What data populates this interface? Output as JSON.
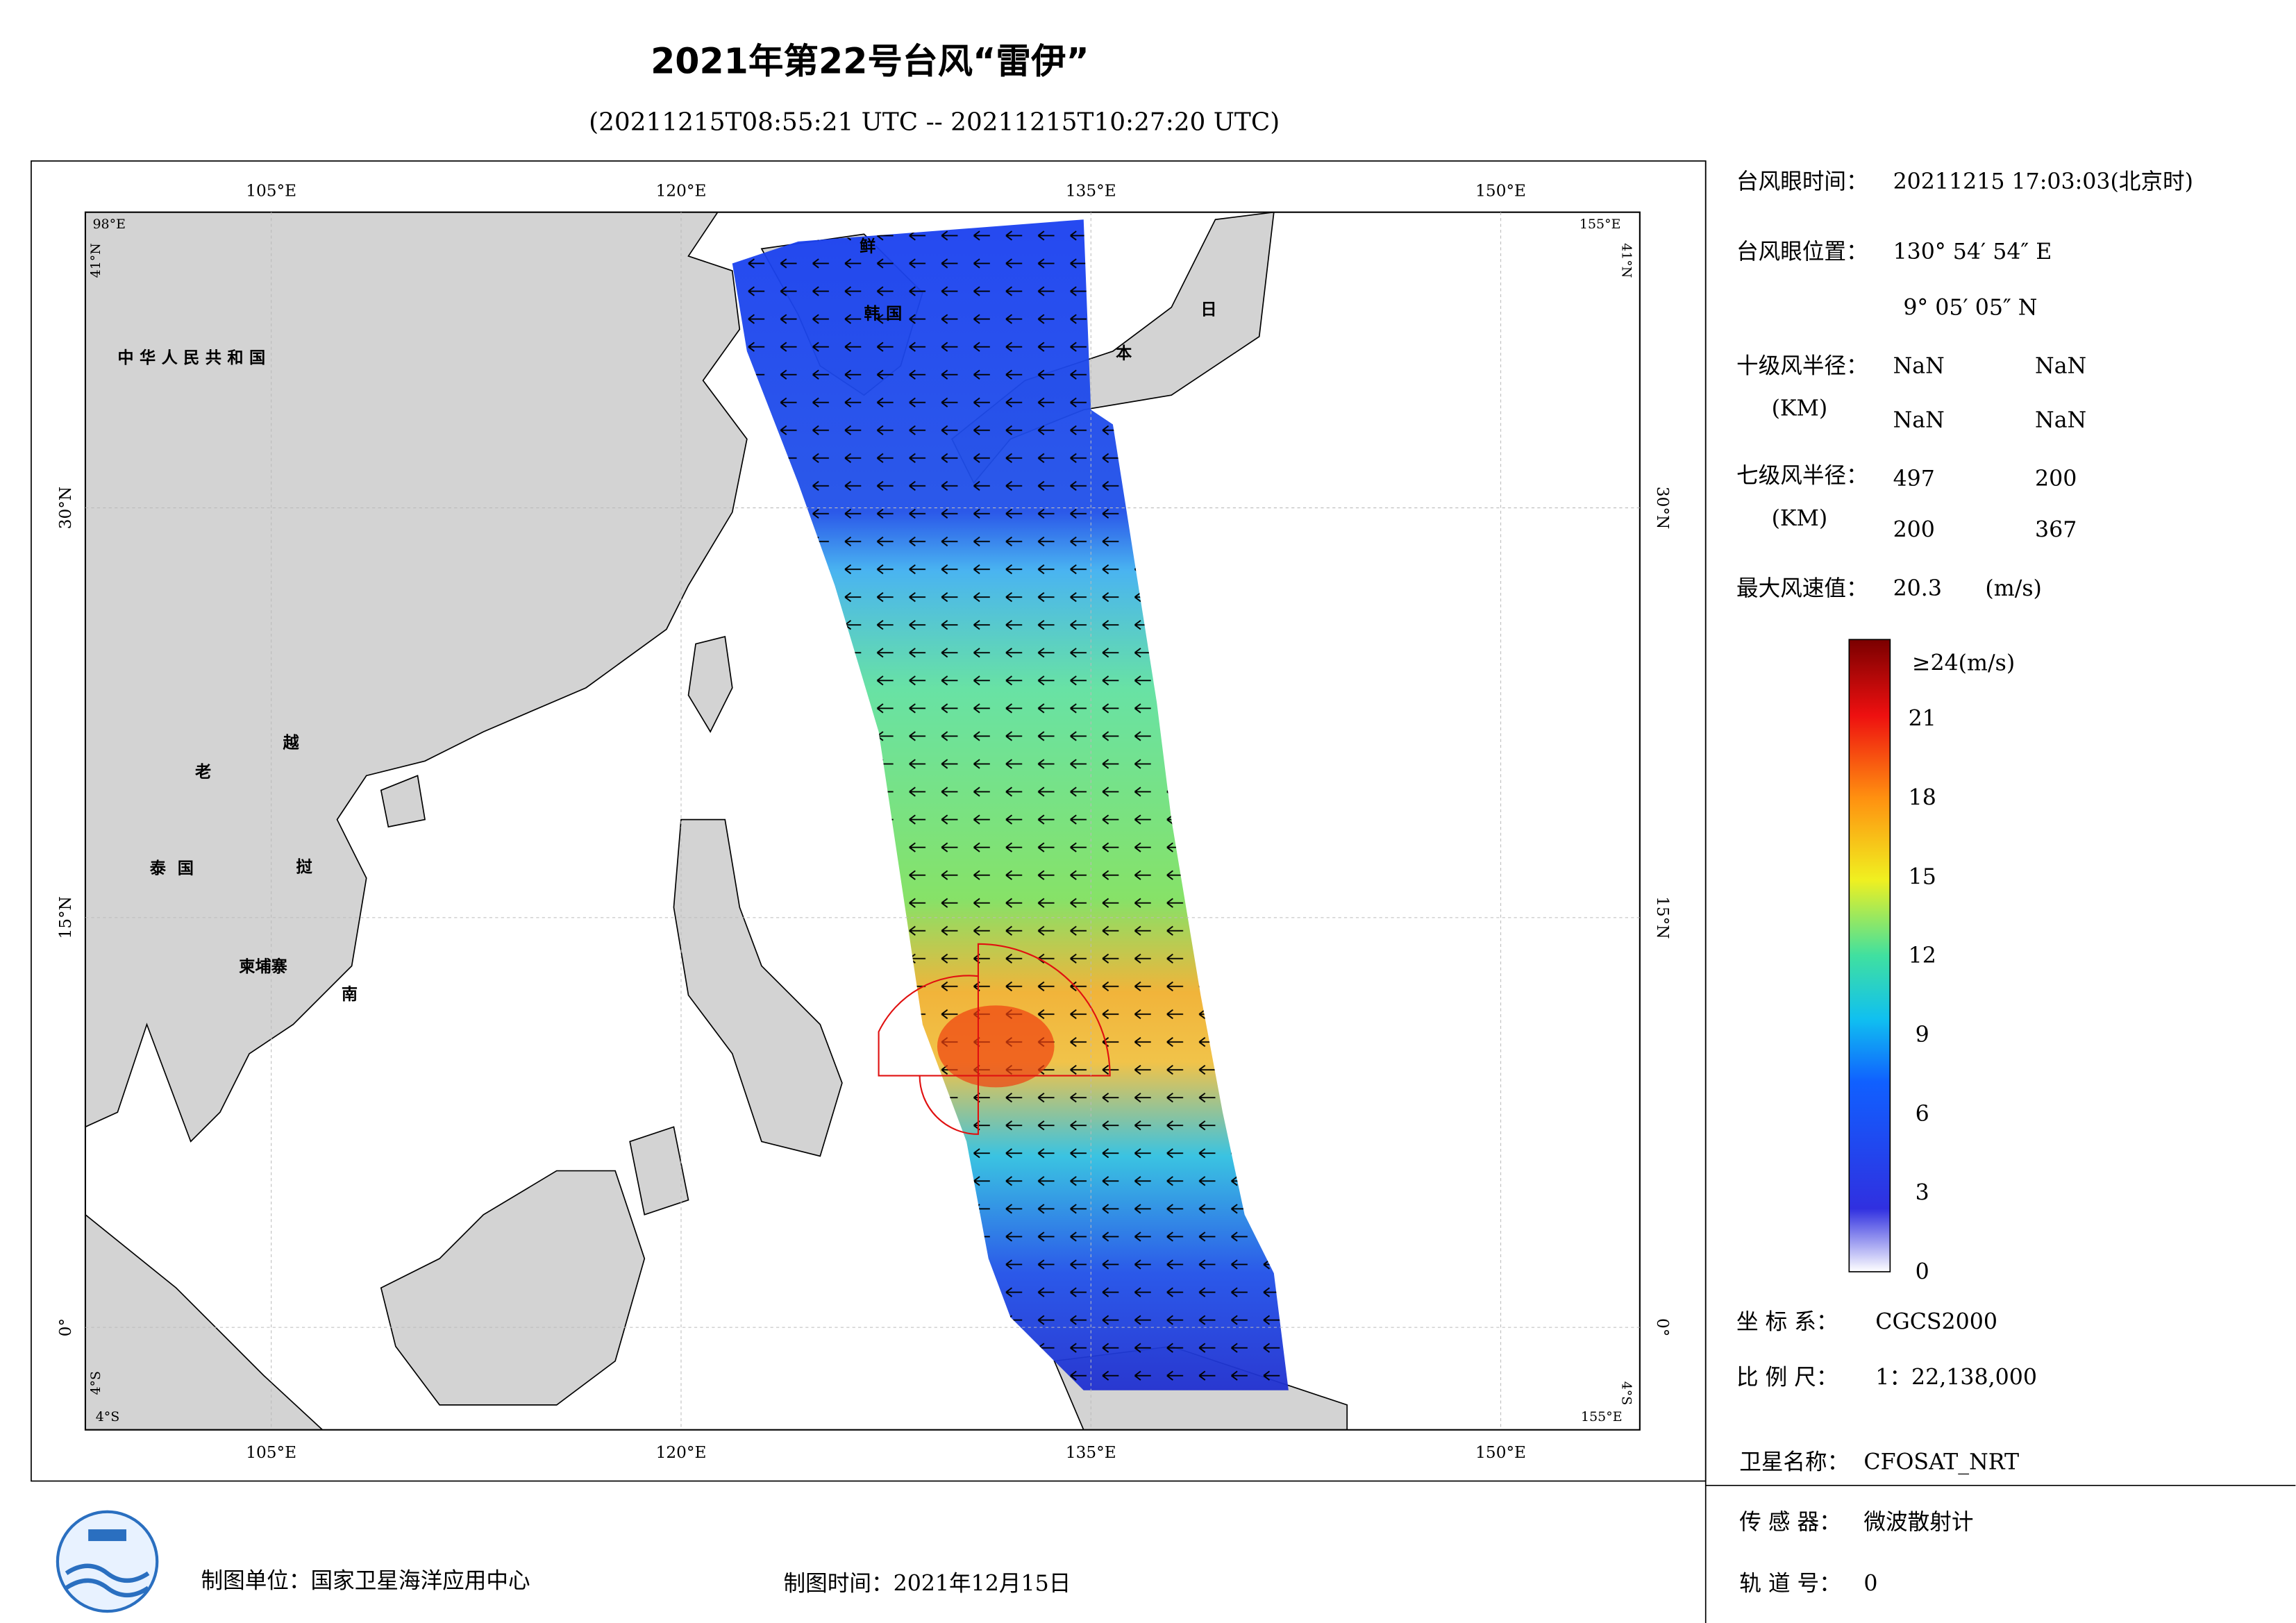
{
  "title": "2021年第22号台风“雷伊”",
  "subtitle": "(20211215T08:55:21 UTC -- 20211215T10:27:20 UTC)",
  "map": {
    "top_lon_labels": [
      "105°E",
      "120°E",
      "135°E",
      "150°E"
    ],
    "bottom_lon_labels": [
      "105°E",
      "120°E",
      "135°E",
      "150°E"
    ],
    "left_lat_labels": [
      "30°N",
      "15°N",
      "0°"
    ],
    "right_lat_labels": [
      "30°N",
      "15°N",
      "0°"
    ],
    "corner_labels": [
      "98°E",
      "41°N",
      "155°E",
      "41°N",
      "4°S",
      "4°S",
      "155°E",
      "4°S"
    ],
    "place_labels": [
      "中华人民共和国",
      "老",
      "越",
      "泰国",
      "挝",
      "柬埔寨",
      "南",
      "鲜",
      "韩国",
      "日",
      "本"
    ]
  },
  "info": [
    {
      "label": "台风眼时间：",
      "values": [
        "20211215 17:03:03(北京时)"
      ]
    },
    {
      "label": "台风眼位置：",
      "values": [
        "130° 54′ 54″ E",
        "9° 05′ 05″ N"
      ]
    },
    {
      "label": "十级风半径：",
      "unit": "(KM)",
      "values": [
        "NaN",
        "NaN",
        "NaN",
        "NaN"
      ]
    },
    {
      "label": "七级风半径：",
      "unit": "(KM)",
      "values": [
        497,
        200,
        200,
        367
      ]
    },
    {
      "label": "最大风速值：",
      "values": [
        20.3,
        "(m/s)"
      ]
    }
  ],
  "colorbar": {
    "top_label": "≥24(m/s)",
    "range": [
      0,
      24
    ],
    "ticks": [
      21,
      18,
      15,
      12,
      9,
      6,
      3,
      0
    ]
  },
  "meta": [
    {
      "label": "坐 标 系：",
      "value": "CGCS2000"
    },
    {
      "label": "比 例 尺：",
      "value": "1：22,138,000"
    },
    {
      "label": "卫星名称：",
      "value": "CFOSAT_NRT"
    },
    {
      "label": "传 感 器：",
      "value": "微波散射计"
    },
    {
      "label": "轨 道 号：",
      "value": "0"
    }
  ],
  "footer": {
    "unit": "制图单位：国家卫星海洋应用中心",
    "time": "制图时间：2021年12月15日"
  }
}
